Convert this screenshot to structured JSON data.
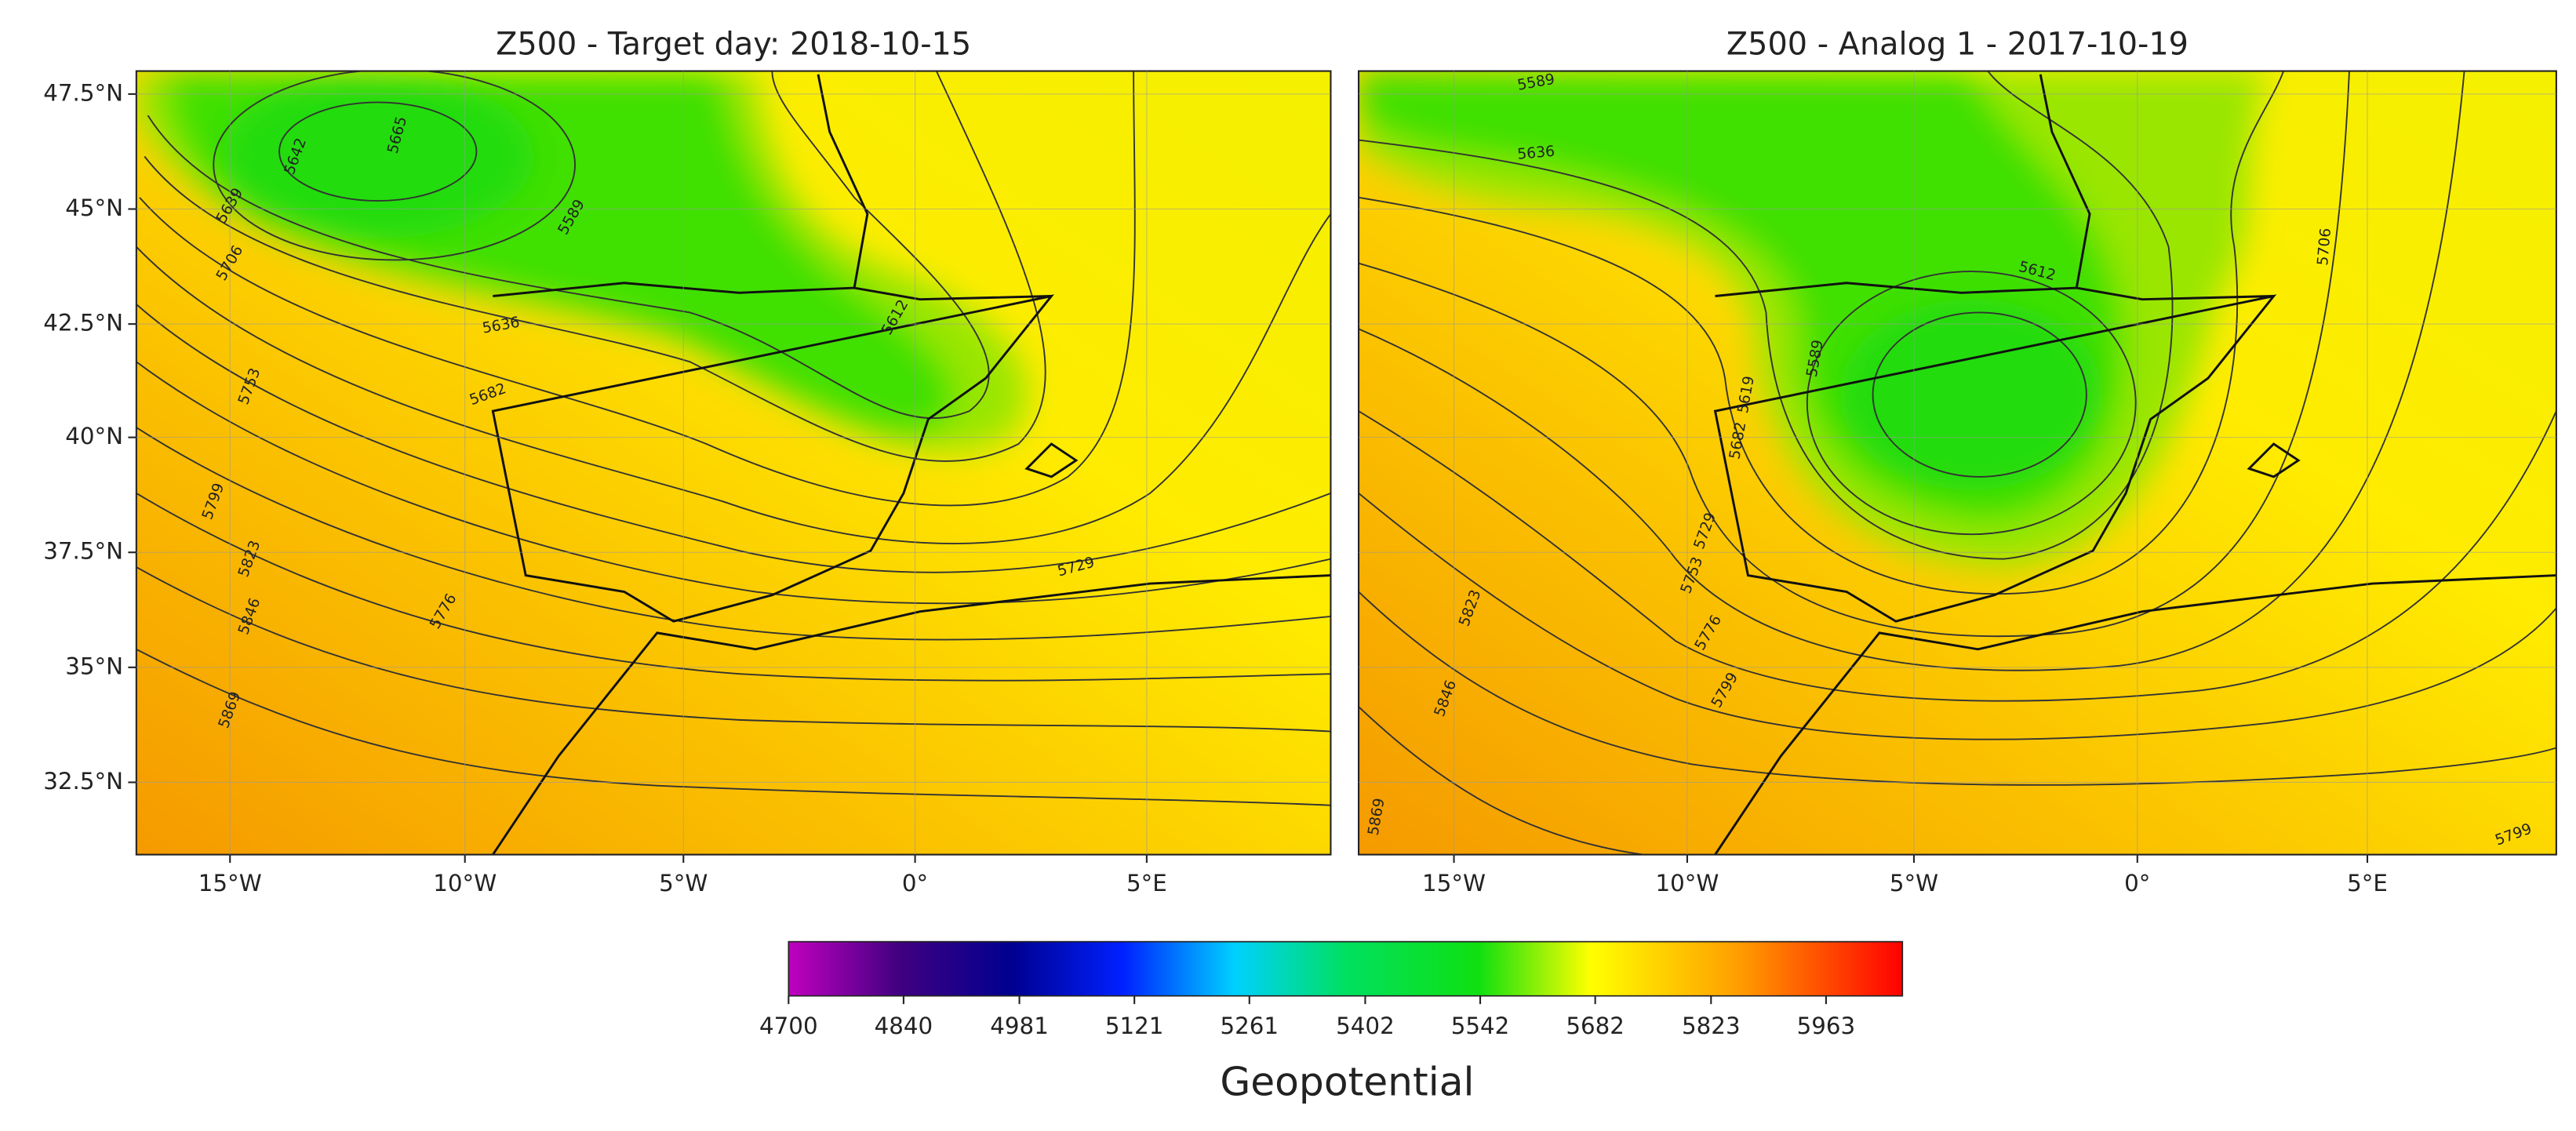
{
  "panels": [
    {
      "title": "Z500 - Target day: 2018-10-15",
      "xtick_labels": [
        "15°W",
        "10°W",
        "5°W",
        "0°",
        "5°E"
      ],
      "ytick_labels": [
        "47.5°N",
        "45°N",
        "42.5°N",
        "40°N",
        "37.5°N",
        "35°N",
        "32.5°N"
      ],
      "contour_labels": [
        "5642",
        "5665",
        "5589",
        "5639",
        "5706",
        "5753",
        "5799",
        "5823",
        "5846",
        "5869",
        "5612",
        "5636",
        "5682",
        "5776",
        "5729"
      ]
    },
    {
      "title": "Z500 - Analog 1 - 2017-10-19",
      "xtick_labels": [
        "15°W",
        "10°W",
        "5°W",
        "0°",
        "5°E"
      ],
      "contour_labels": [
        "5589",
        "5636",
        "5706",
        "5612",
        "5589",
        "5619",
        "5682",
        "5729",
        "5753",
        "5776",
        "5799",
        "5823",
        "5846",
        "5869",
        "5799"
      ]
    }
  ],
  "colorbar": {
    "range": [
      4700,
      6056
    ],
    "ticks": [
      4700,
      4840,
      4981,
      5121,
      5261,
      5402,
      5542,
      5682,
      5823,
      5963
    ],
    "label": "Geopotential"
  }
}
